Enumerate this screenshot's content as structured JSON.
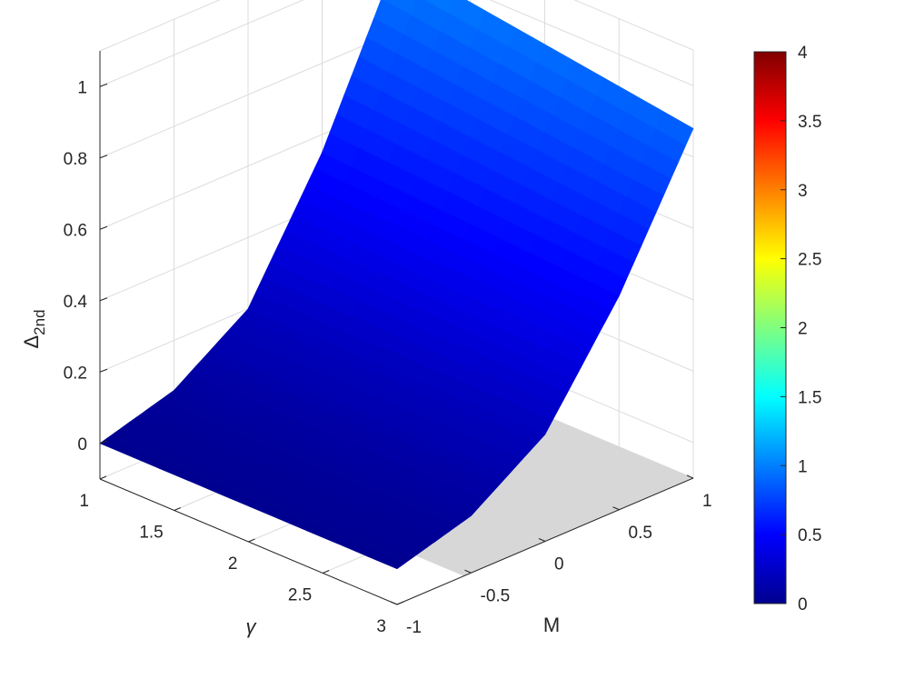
{
  "chart_data": {
    "type": "surface",
    "zlabel_main": "Δ",
    "zlabel_sub": "2nd",
    "xlabel": "M",
    "ylabel": "γ",
    "x_ticks": [
      "-1",
      "-0.5",
      "0",
      "0.5",
      "1"
    ],
    "y_ticks": [
      "1",
      "1.5",
      "2",
      "2.5",
      "3"
    ],
    "z_ticks": [
      "0",
      "0.2",
      "0.4",
      "0.6",
      "0.8",
      "1"
    ],
    "xlim": [
      -1,
      1
    ],
    "ylim": [
      1,
      3
    ],
    "zlim": [
      -0.1,
      1.1
    ],
    "colormap": "jet",
    "clim": [
      0,
      4
    ],
    "colorbar_ticks": [
      "0",
      "0.5",
      "1",
      "1.5",
      "2",
      "2.5",
      "3",
      "3.5",
      "4"
    ],
    "grid": true,
    "surface_samples": {
      "M": [
        -1,
        -0.5,
        0,
        0.5,
        1
      ],
      "gamma": [
        1,
        2,
        3
      ],
      "values_at_gamma_1": [
        0,
        0.06,
        0.2,
        0.55,
        1.0
      ],
      "values_at_gamma_3": [
        0,
        0.06,
        0.2,
        0.5,
        0.88
      ]
    }
  }
}
